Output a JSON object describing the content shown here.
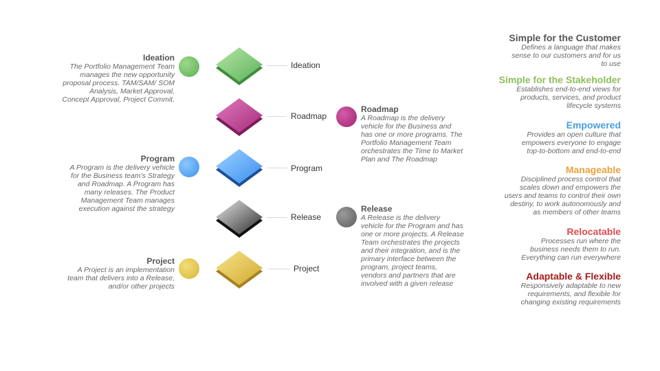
{
  "stages": [
    {
      "label": "Ideation"
    },
    {
      "label": "Roadmap"
    },
    {
      "label": "Program"
    },
    {
      "label": "Release"
    },
    {
      "label": "Project"
    }
  ],
  "left_notes": {
    "ideation": {
      "title": "Ideation",
      "desc": "The Portfolio Management Team manages the new opportunity proposal process. TAM/SAM/ SOM Analysis, Market Approval, Concept Approval, Project Commit."
    },
    "program": {
      "title": "Program",
      "desc": "A Program is the delivery vehicle for the Business team’s Strategy and Roadmap. A Program has many releases. The Product Management Team manages execution against the strategy"
    },
    "project": {
      "title": "Project",
      "desc": "A Project is an implementation team that delivers into a Release, and/or other projects"
    }
  },
  "right_notes": {
    "roadmap": {
      "title": "Roadmap",
      "desc": "A Roadmap is the delivery vehicle for the Business and has one or more programs. The Portfolio Management Team orchestrates the Time to Market Plan and The Roadmap"
    },
    "release": {
      "title": "Release",
      "desc": "A Release is the delivery vehicle for the Program and has one or more projects. A Release Team orchestrates the projects and their integration, and is the primary interface between the program, project teams, vendors and partners that are involved with a given release"
    }
  },
  "principles": [
    {
      "title": "Simple for the Customer",
      "desc": "Defines a language that makes sense to our customers and for us to use",
      "color": "#555555"
    },
    {
      "title": "Simple for the Stakeholder",
      "desc": "Establishes end-to-end views for products, services, and product lifecycle  systems",
      "color": "#8bbf5a"
    },
    {
      "title": "Empowered",
      "desc": "Provides an open culture that empowers everyone to engage top-to-bottom and end-to-end",
      "color": "#4a9ee0"
    },
    {
      "title": "Manageable",
      "desc": "Disciplined process control that scales down and empowers the users and teams to control their own destiny, to work autonomously and as members of other teams",
      "color": "#e9a23b"
    },
    {
      "title": "Relocatable",
      "desc": "Processes run where the business needs them to run. Everything can run everywhere",
      "color": "#e04a4f"
    },
    {
      "title": "Adaptable & Flexible",
      "desc": "Responsively adaptable to new requirements, and flexible for changing  existing requirements",
      "color": "#a61b1b"
    }
  ]
}
